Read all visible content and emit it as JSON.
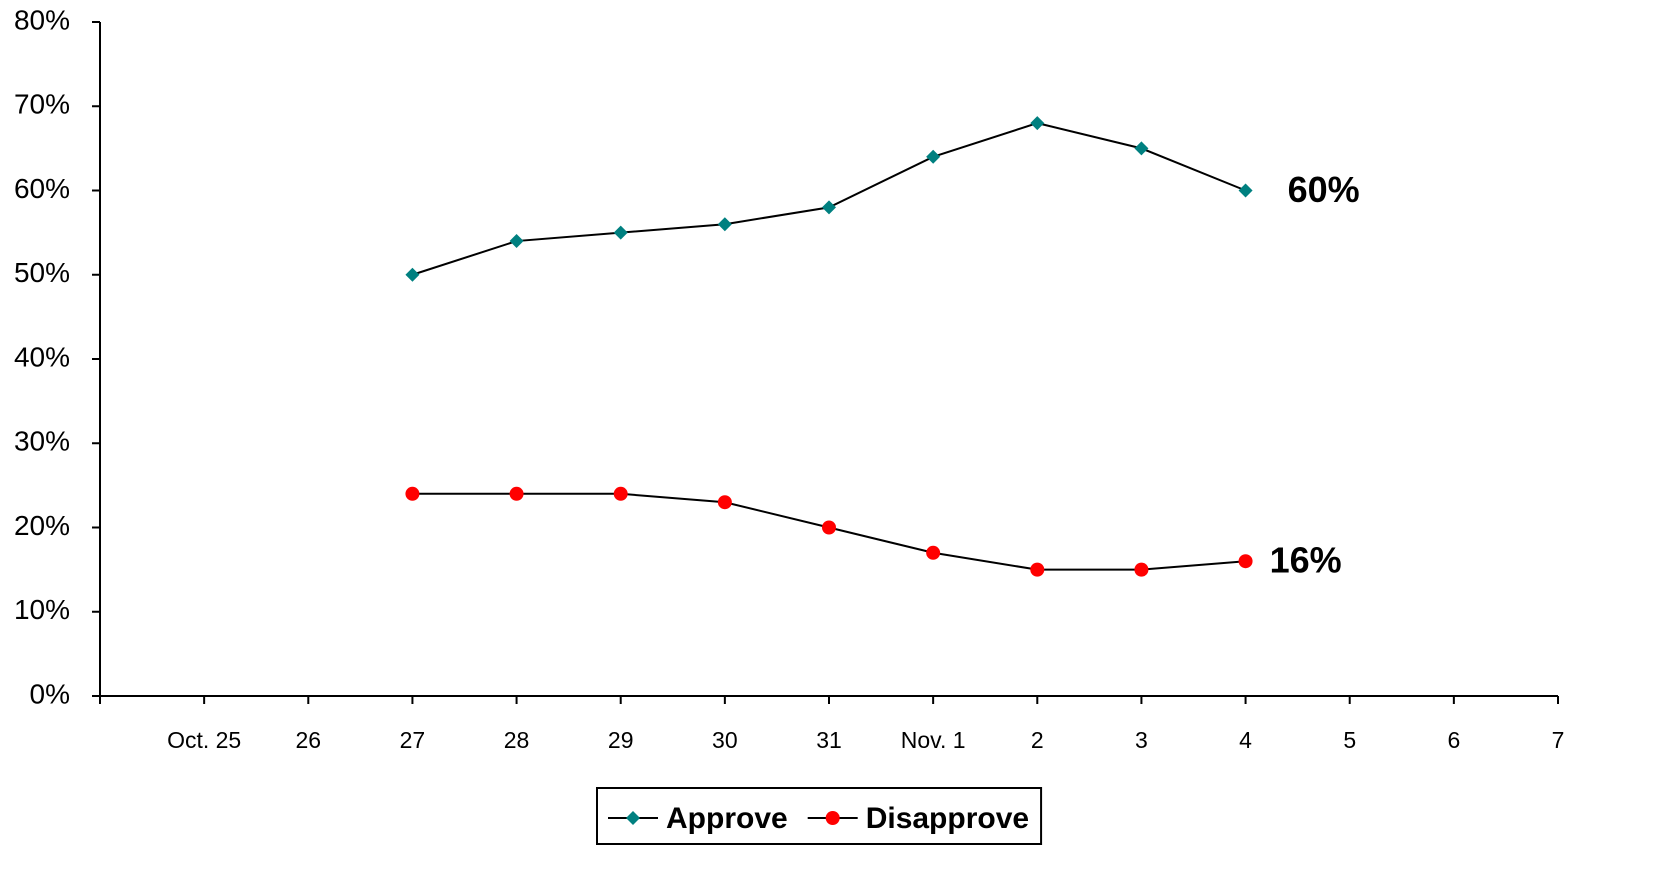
{
  "chart_data": {
    "type": "line",
    "categories": [
      null,
      "Oct. 25",
      "26",
      "27",
      "28",
      "29",
      "30",
      "31",
      "Nov. 1",
      "2",
      "3",
      "4",
      "5",
      "6",
      "7"
    ],
    "series": [
      {
        "name": "Approve",
        "color": "#008080",
        "marker": "diamond",
        "values": [
          null,
          null,
          null,
          50,
          54,
          55,
          56,
          58,
          64,
          68,
          65,
          60,
          null,
          null,
          null
        ],
        "value_labels": [
          null,
          null,
          null,
          null,
          null,
          null,
          null,
          null,
          null,
          null,
          null,
          "60%",
          null,
          null,
          null
        ]
      },
      {
        "name": "Disapprove",
        "color": "#ff0000",
        "marker": "circle",
        "values": [
          null,
          null,
          null,
          24,
          24,
          24,
          23,
          20,
          17,
          15,
          15,
          16,
          null,
          null,
          null
        ],
        "value_labels": [
          null,
          null,
          null,
          null,
          null,
          null,
          null,
          null,
          null,
          null,
          null,
          "16%",
          null,
          null,
          null
        ]
      }
    ],
    "ylim": [
      0,
      80
    ],
    "yticks": [
      {
        "value": 0,
        "label": "0%"
      },
      {
        "value": 10,
        "label": "10%"
      },
      {
        "value": 20,
        "label": "20%"
      },
      {
        "value": 30,
        "label": "30%"
      },
      {
        "value": 40,
        "label": "40%"
      },
      {
        "value": 50,
        "label": "50%"
      },
      {
        "value": 60,
        "label": "60%"
      },
      {
        "value": 70,
        "label": "70%"
      },
      {
        "value": 80,
        "label": "80%"
      }
    ],
    "legend": "bottom"
  }
}
